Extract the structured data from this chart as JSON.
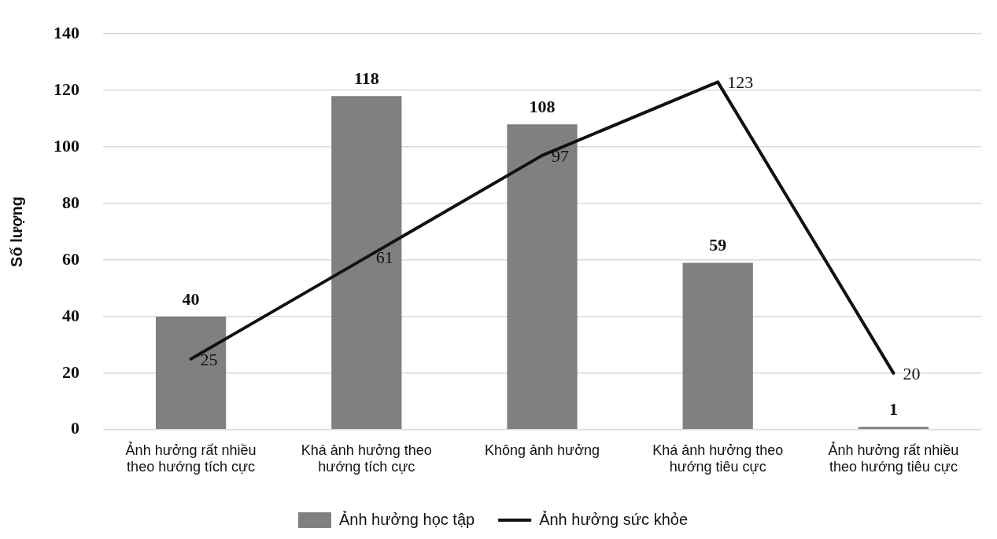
{
  "chart_data": {
    "type": "bar",
    "ylabel": "Số lượng",
    "categories": [
      "Ảnh hưởng rất nhiều theo hướng tích cực",
      "Khá ảnh hưởng theo hướng tích cực",
      "Không ảnh hưởng",
      "Khá ảnh hưởng theo hướng tiêu cực",
      "Ảnh hưởng rất nhiều theo hướng tiêu cực"
    ],
    "series": [
      {
        "name": "Ảnh hưởng học tập",
        "color": "#808080",
        "values": [
          40,
          118,
          108,
          59,
          1
        ]
      },
      {
        "name": "Ảnh hưởng sức khỏe",
        "type": "line",
        "color": "#111111",
        "values": [
          25,
          61,
          97,
          123,
          20
        ]
      }
    ],
    "ylim": [
      0,
      140
    ],
    "yticks": [
      0,
      20,
      40,
      60,
      80,
      100,
      120,
      140
    ],
    "grid": "y",
    "legend": "bottom",
    "data_labels": true,
    "marker": "none",
    "line_style": "solid"
  }
}
